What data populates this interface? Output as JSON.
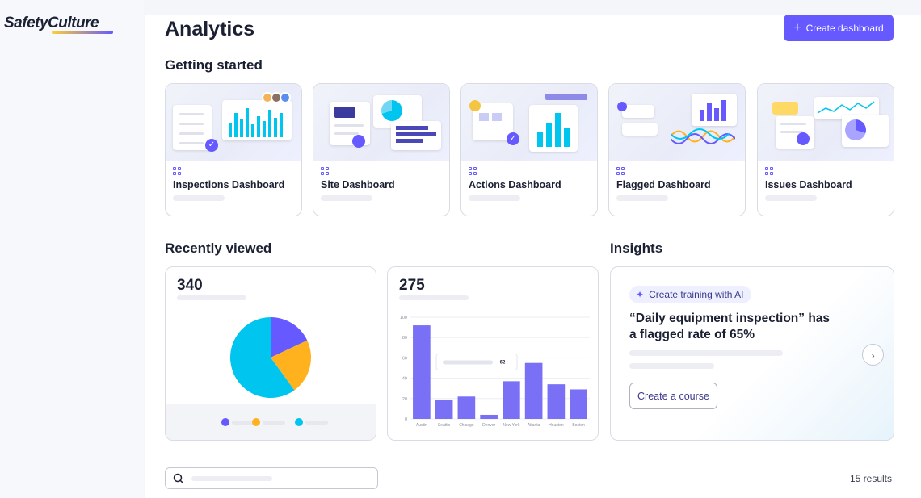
{
  "brand": {
    "logo_text": "SafetyCulture",
    "accent": "#6559ff"
  },
  "header": {
    "title": "Analytics",
    "create_label": "Create dashboard"
  },
  "getting_started": {
    "title": "Getting started",
    "cards": [
      {
        "label": "Inspections Dashboard"
      },
      {
        "label": "Site Dashboard"
      },
      {
        "label": "Actions Dashboard"
      },
      {
        "label": "Flagged Dashboard"
      },
      {
        "label": "Issues Dashboard"
      }
    ]
  },
  "recently_viewed": {
    "title": "Recently viewed",
    "pie_card": {
      "number": "340"
    },
    "bar_card": {
      "number": "275",
      "reference_label": "62"
    }
  },
  "insights": {
    "title": "Insights",
    "pill": "Create training with AI",
    "text": "“Daily equipment inspection” has a flagged rate of 65%",
    "button": "Create a course"
  },
  "footer": {
    "results": "15 results"
  },
  "chart_data": [
    {
      "type": "pie",
      "values": [
        18,
        22,
        60
      ],
      "colors": [
        "#6559ff",
        "#ffb21e",
        "#00c5ee"
      ]
    },
    {
      "type": "bar",
      "categories": [
        "Austin",
        "Seattle",
        "Chicago",
        "Denver",
        "New York",
        "Atlanta",
        "Houston",
        "Boston"
      ],
      "values": [
        92,
        19,
        22,
        4,
        37,
        55,
        34,
        29
      ],
      "ylim": [
        0,
        100
      ],
      "yticks": [
        0,
        20,
        40,
        60,
        80,
        100
      ],
      "reference_line": 56,
      "color": "#7a70f5"
    }
  ]
}
